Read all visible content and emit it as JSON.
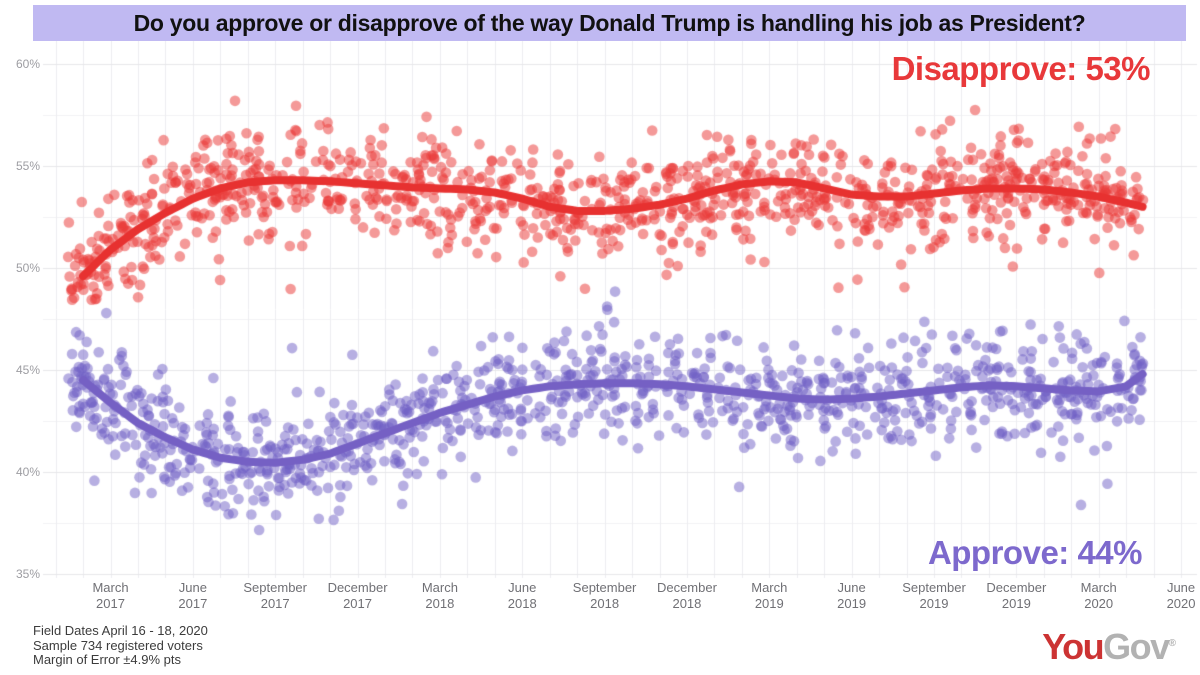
{
  "title": {
    "text": "Do you approve or disapprove of the way Donald Trump is handling his job as President?"
  },
  "annotations": {
    "disapprove": "Disapprove: 53%",
    "approve": "Approve: 44%"
  },
  "footer": {
    "line1": "Field Dates April 16 - 18, 2020",
    "line2": "Sample 734 registered voters",
    "line3": "Margin of Error ±4.9% pts"
  },
  "logo": {
    "part1": "You",
    "part2": "Gov",
    "registered": "®"
  },
  "colors": {
    "title_band_bg": "#c0b9f2",
    "disapprove_line": "#e73130",
    "disapprove_dots": "rgba(233,60,57,0.52)",
    "disapprove_label": "#e8383a",
    "approve_line": "#7560c4",
    "approve_dots": "rgba(112,96,197,0.5)",
    "approve_label": "#7d69cd",
    "grid_major": "#e7e7ea",
    "grid_minor": "#f2f2f4",
    "grid_vertical": "#ededf0",
    "y_tick_text": "#9d9da2",
    "x_tick_text": "#707075",
    "logo_red": "#cc3333",
    "logo_gray": "#b2b2b2"
  },
  "chart_data": {
    "type": "scatter",
    "title": "Do you approve or disapprove of the way Donald Trump is handling his job as President?",
    "xlabel": "",
    "ylabel": "",
    "ylim": [
      35,
      60
    ],
    "grid": true,
    "y_ticks": [
      {
        "label": "60%",
        "value": 60
      },
      {
        "label": "55%",
        "value": 55
      },
      {
        "label": "50%",
        "value": 50
      },
      {
        "label": "45%",
        "value": 45
      },
      {
        "label": "40%",
        "value": 40
      },
      {
        "label": "35%",
        "value": 35
      }
    ],
    "y_minor_ticks": [
      57.5,
      52.5,
      47.5,
      42.5,
      37.5
    ],
    "x_ticks": [
      {
        "month": "March",
        "year": "2017",
        "m": 1
      },
      {
        "month": "June",
        "year": "2017",
        "m": 4
      },
      {
        "month": "September",
        "year": "2017",
        "m": 7
      },
      {
        "month": "December",
        "year": "2017",
        "m": 10
      },
      {
        "month": "March",
        "year": "2018",
        "m": 13
      },
      {
        "month": "June",
        "year": "2018",
        "m": 16
      },
      {
        "month": "September",
        "year": "2018",
        "m": 19
      },
      {
        "month": "December",
        "year": "2018",
        "m": 22
      },
      {
        "month": "March",
        "year": "2019",
        "m": 25
      },
      {
        "month": "June",
        "year": "2019",
        "m": 28
      },
      {
        "month": "September",
        "year": "2019",
        "m": 31
      },
      {
        "month": "December",
        "year": "2019",
        "m": 34
      },
      {
        "month": "March",
        "year": "2020",
        "m": 37
      },
      {
        "month": "June",
        "year": "2020",
        "m": 40
      }
    ],
    "x_range": {
      "start": "February 2017",
      "end": "April 18, 2020"
    },
    "series": [
      {
        "name": "Disapprove",
        "latest_pct": 53,
        "trend": [
          [
            0,
            49.6
          ],
          [
            1,
            50.9
          ],
          [
            2,
            51.9
          ],
          [
            3,
            52.7
          ],
          [
            4,
            53.4
          ],
          [
            5,
            53.9
          ],
          [
            6,
            54.2
          ],
          [
            7,
            54.3
          ],
          [
            8,
            54.3
          ],
          [
            9,
            54.25
          ],
          [
            10,
            54.15
          ],
          [
            11,
            54.05
          ],
          [
            12,
            53.95
          ],
          [
            13,
            53.9
          ],
          [
            14,
            53.85
          ],
          [
            15,
            53.7
          ],
          [
            16,
            53.4
          ],
          [
            17,
            53.0
          ],
          [
            18,
            52.8
          ],
          [
            19,
            52.8
          ],
          [
            20,
            52.9
          ],
          [
            21,
            53.1
          ],
          [
            22,
            53.4
          ],
          [
            23,
            53.8
          ],
          [
            24,
            54.1
          ],
          [
            25,
            54.25
          ],
          [
            26,
            54.2
          ],
          [
            27,
            53.9
          ],
          [
            28,
            53.6
          ],
          [
            29,
            53.5
          ],
          [
            30,
            53.5
          ],
          [
            31,
            53.65
          ],
          [
            32,
            53.8
          ],
          [
            33,
            53.9
          ],
          [
            34,
            53.9
          ],
          [
            35,
            53.85
          ],
          [
            36,
            53.7
          ],
          [
            37,
            53.5
          ],
          [
            38,
            53.2
          ],
          [
            38.6,
            53.0
          ]
        ],
        "scatter_range_pct": [
          48.4,
          59.2
        ]
      },
      {
        "name": "Approve",
        "latest_pct": 44,
        "trend": [
          [
            0,
            44.5
          ],
          [
            1,
            43.4
          ],
          [
            2,
            42.4
          ],
          [
            3,
            41.7
          ],
          [
            4,
            41.1
          ],
          [
            5,
            40.7
          ],
          [
            6,
            40.5
          ],
          [
            7,
            40.45
          ],
          [
            8,
            40.6
          ],
          [
            9,
            40.9
          ],
          [
            10,
            41.4
          ],
          [
            11,
            41.9
          ],
          [
            12,
            42.4
          ],
          [
            13,
            42.9
          ],
          [
            14,
            43.3
          ],
          [
            15,
            43.7
          ],
          [
            16,
            44.0
          ],
          [
            17,
            44.2
          ],
          [
            18,
            44.3
          ],
          [
            19,
            44.35
          ],
          [
            20,
            44.35
          ],
          [
            21,
            44.3
          ],
          [
            22,
            44.2
          ],
          [
            23,
            44.05
          ],
          [
            24,
            43.9
          ],
          [
            25,
            43.75
          ],
          [
            26,
            43.6
          ],
          [
            27,
            43.55
          ],
          [
            28,
            43.6
          ],
          [
            29,
            43.7
          ],
          [
            30,
            43.85
          ],
          [
            31,
            44.0
          ],
          [
            32,
            44.15
          ],
          [
            33,
            44.25
          ],
          [
            34,
            44.2
          ],
          [
            35,
            44.1
          ],
          [
            36,
            44.0
          ],
          [
            37,
            43.95
          ],
          [
            38,
            44.2
          ],
          [
            38.6,
            44.8
          ]
        ],
        "scatter_range_pct": [
          35.7,
          49.3
        ]
      }
    ],
    "scatter": {
      "points_per_series": 1100,
      "jitter_sd_pct": 1.3,
      "outlier_fraction": 0.05,
      "outlier_sd_mult": 2.0,
      "dot_radius_px": 5.3,
      "x_months_range": [
        -0.55,
        38.62
      ]
    }
  }
}
